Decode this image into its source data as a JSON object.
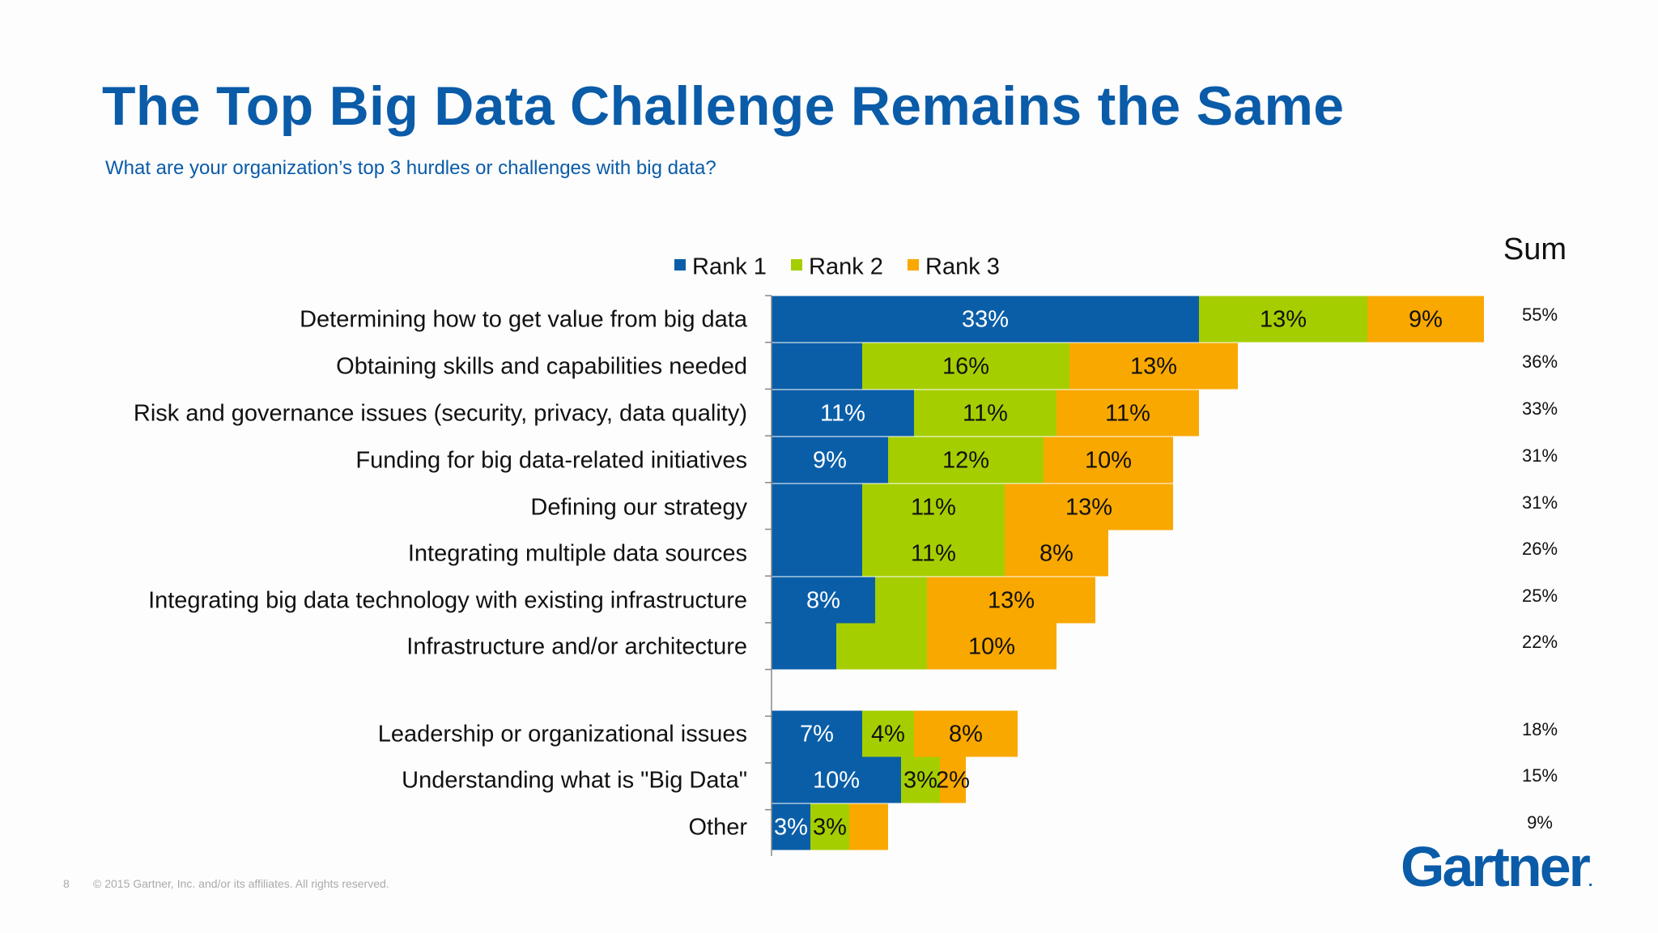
{
  "title": "The Top Big Data Challenge Remains the Same",
  "subtitle": "What are your organization’s top 3 hurdles or challenges with big data?",
  "footer": {
    "page_number": "8",
    "copyright": "© 2015 Gartner, Inc. and/or its affiliates. All rights reserved."
  },
  "logo": {
    "text": "Gartner",
    "mark": "."
  },
  "colors": {
    "rank1": "#0a5ea8",
    "rank2": "#a5ce00",
    "rank3": "#f9a800",
    "title": "#0a5ba8"
  },
  "chart_data": {
    "type": "bar",
    "orientation": "horizontal",
    "stacked": true,
    "sum_header": "Sum",
    "legend_position": "top",
    "categories": [
      "Determining how to get value from big data",
      "Obtaining skills and capabilities needed",
      "Risk and governance issues (security, privacy, data quality)",
      "Funding for big data-related initiatives",
      "Defining our strategy",
      "Integrating multiple data sources",
      "Integrating big data technology with existing infrastructure",
      "Infrastructure and/or architecture",
      "Leadership or organizational issues",
      "Understanding what is \"Big Data\"",
      "Other"
    ],
    "series": [
      {
        "name": "Rank 1",
        "values": [
          33,
          7,
          11,
          9,
          7,
          7,
          8,
          5,
          7,
          10,
          3
        ],
        "labels": [
          "33%",
          "",
          "11%",
          "9%",
          "",
          "",
          "8%",
          "",
          "7%",
          "10%",
          "3%"
        ]
      },
      {
        "name": "Rank 2",
        "values": [
          13,
          16,
          11,
          12,
          11,
          11,
          4,
          7,
          4,
          3,
          3
        ],
        "labels": [
          "13%",
          "16%",
          "11%",
          "12%",
          "11%",
          "11%",
          "",
          "",
          "4%",
          "3%",
          "3%"
        ]
      },
      {
        "name": "Rank 3",
        "values": [
          9,
          13,
          11,
          10,
          13,
          8,
          13,
          10,
          8,
          2,
          3
        ],
        "labels": [
          "9%",
          "13%",
          "11%",
          "10%",
          "13%",
          "8%",
          "13%",
          "10%",
          "8%",
          "2%",
          ""
        ]
      }
    ],
    "sums": [
      "55%",
      "36%",
      "33%",
      "31%",
      "31%",
      "26%",
      "25%",
      "22%",
      "18%",
      "15%",
      "9%"
    ],
    "xlim": [
      0,
      55
    ],
    "grid": false
  }
}
